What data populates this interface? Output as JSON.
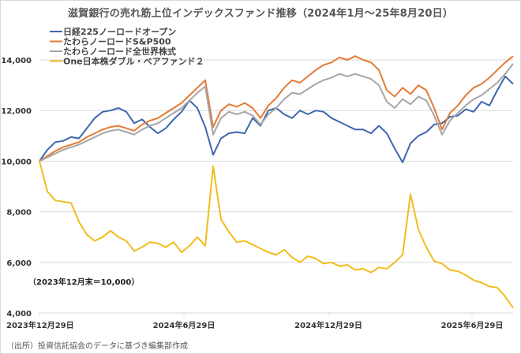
{
  "chart_data": {
    "type": "line",
    "title": "滋賀銀行の売れ筋上位インデックスファンド推移（2024年1月～25年8月20日）",
    "xlabel": "",
    "ylabel": "",
    "ylim": [
      4000,
      14000
    ],
    "yticks": [
      4000,
      6000,
      8000,
      10000,
      12000,
      14000
    ],
    "ytick_labels": [
      "4,000",
      "6,000",
      "8,000",
      "10,000",
      "12,000",
      "14,000"
    ],
    "xtick_labels": [
      "2023年12月29日",
      "2024年6月29日",
      "2024年12月29日",
      "2025年6月29日"
    ],
    "x_start": "2023-12-29",
    "x_end": "2025-08-20",
    "x_step_days": 10,
    "grid": true,
    "legend_position": "top-left",
    "annotation": "（2023年12月末＝10,000）",
    "series": [
      {
        "name": "日経225ノーロードオープン",
        "color": "#3e67ae",
        "values": [
          10000,
          10450,
          10750,
          10800,
          10950,
          10900,
          11300,
          11700,
          11950,
          12000,
          12100,
          11950,
          11500,
          11650,
          11350,
          11100,
          11300,
          11650,
          11950,
          12400,
          12100,
          11350,
          10250,
          10900,
          11100,
          11150,
          11100,
          11700,
          11400,
          12000,
          12100,
          11850,
          11700,
          12000,
          11850,
          12000,
          11950,
          11700,
          11550,
          11400,
          11250,
          11250,
          11100,
          11400,
          11100,
          10500,
          9950,
          10700,
          11000,
          11150,
          11450,
          11500,
          11750,
          11800,
          12050,
          11950,
          12350,
          12200,
          12800,
          13350,
          13050
        ]
      },
      {
        "name": "たわらノーロードS&P500",
        "color": "#e37b35",
        "values": [
          10000,
          10200,
          10400,
          10550,
          10650,
          10750,
          10950,
          11100,
          11250,
          11350,
          11400,
          11300,
          11200,
          11450,
          11600,
          11700,
          11900,
          12100,
          12300,
          12600,
          12900,
          13200,
          11350,
          12000,
          12250,
          12150,
          12300,
          12100,
          11700,
          12200,
          12500,
          12900,
          13200,
          13100,
          13350,
          13600,
          13800,
          13900,
          14100,
          14000,
          14150,
          14000,
          13900,
          13600,
          12800,
          12550,
          12900,
          12650,
          13000,
          12800,
          12100,
          11250,
          11900,
          12200,
          12600,
          12900,
          13050,
          13300,
          13600,
          13900,
          14150
        ]
      },
      {
        "name": "たわらノーロード全世界株式",
        "color": "#a6a6a6",
        "values": [
          10000,
          10150,
          10300,
          10450,
          10550,
          10650,
          10800,
          10950,
          11100,
          11200,
          11250,
          11150,
          11050,
          11250,
          11400,
          11500,
          11700,
          11900,
          12100,
          12400,
          12700,
          12950,
          11050,
          11700,
          11950,
          11850,
          11950,
          11800,
          11450,
          11850,
          12100,
          12450,
          12700,
          12650,
          12850,
          13050,
          13200,
          13300,
          13450,
          13350,
          13450,
          13350,
          13250,
          13000,
          12350,
          12100,
          12450,
          12250,
          12550,
          12400,
          11800,
          11050,
          11600,
          11900,
          12200,
          12450,
          12600,
          12850,
          13100,
          13450,
          13850
        ]
      },
      {
        "name": "One日本株ダブル・ベアファンド２",
        "color": "#f2bc1b",
        "values": [
          10000,
          8800,
          8450,
          8400,
          8350,
          7600,
          7100,
          6850,
          7000,
          7250,
          7000,
          6850,
          6450,
          6600,
          6800,
          6750,
          6600,
          6800,
          6400,
          6650,
          7000,
          6650,
          9800,
          7700,
          7200,
          6800,
          6850,
          6700,
          6550,
          6400,
          6300,
          6500,
          6200,
          6000,
          6250,
          6150,
          5950,
          6000,
          5850,
          5900,
          5700,
          5750,
          5600,
          5800,
          5750,
          6000,
          6300,
          8700,
          7300,
          6600,
          6050,
          5950,
          5700,
          5650,
          5500,
          5300,
          5200,
          5050,
          5000,
          4650,
          4200
        ]
      }
    ]
  },
  "footer": {
    "source_note": "（出所）投資信託協会のデータに基づき編集部作成"
  }
}
